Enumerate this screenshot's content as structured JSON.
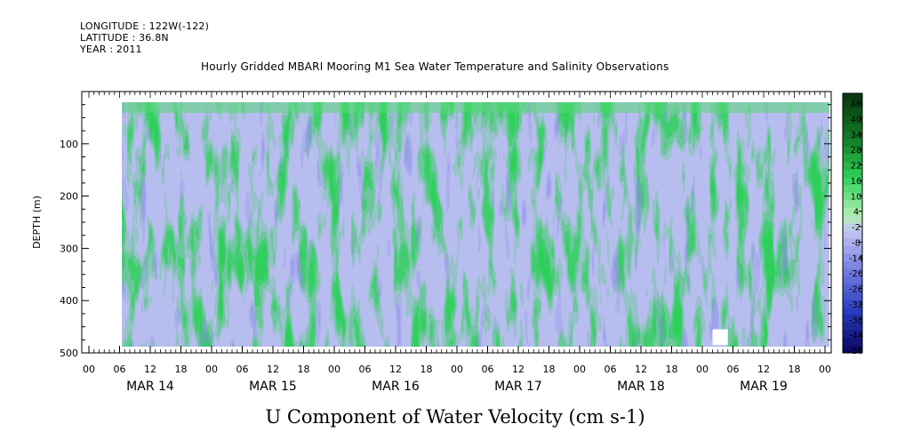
{
  "header": {
    "longitude": "LONGITUDE : 122W(-122)",
    "latitude": "LATITUDE : 36.8N",
    "year": "YEAR : 2011",
    "title": "Hourly Gridded MBARI Mooring M1 Sea Water Temperature and Salinity Observations"
  },
  "chart_data": {
    "type": "heatmap",
    "title": "Hourly Gridded MBARI Mooring M1 Sea Water Temperature and Salinity Observations",
    "xlabel": "",
    "ylabel": "DEPTH (m)",
    "caption": "U Component of Water Velocity (cm s-1)",
    "y_axis": {
      "range": [
        0,
        500
      ],
      "inverted": true,
      "ticks": [
        100,
        200,
        300,
        400,
        500
      ]
    },
    "x_axis": {
      "hour_ticks": [
        "00",
        "06",
        "12",
        "18",
        "00",
        "06",
        "12",
        "18",
        "00",
        "06",
        "12",
        "18",
        "00",
        "06",
        "12",
        "18",
        "00",
        "06",
        "12",
        "18",
        "00",
        "06",
        "12",
        "18",
        "00"
      ],
      "day_labels": [
        "MAR 14",
        "MAR 15",
        "MAR 16",
        "MAR 17",
        "MAR 18",
        "MAR 19"
      ]
    },
    "data_extent": {
      "time_start_hours": 6,
      "time_end_hours": 143,
      "depth_top_m": 18,
      "depth_bottom_m": 485
    },
    "colorbar": {
      "labels": [
        "46",
        "40",
        "34",
        "28",
        "22",
        "16",
        "10",
        "4",
        "-2",
        "-8",
        "-14",
        "-20",
        "-26",
        "-32",
        "-38",
        "-44",
        "-50"
      ],
      "range": [
        -50,
        50
      ]
    }
  },
  "colors": {
    "palette_high": "#083a10",
    "palette_mid_high": "#2fd05a",
    "palette_zero_pos": "#b0f0b0",
    "palette_zero_neg": "#c4c4f2",
    "palette_mid_low": "#4858d6",
    "palette_low": "#0a0a66"
  }
}
